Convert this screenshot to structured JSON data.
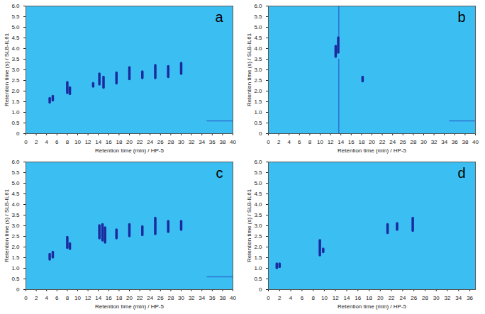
{
  "chart_data": [
    {
      "type": "scatter",
      "title": "a",
      "x_label": "Retention time (min) / HP-5",
      "y_label": "Retention time (s) / SLB-IL61",
      "xlim": [
        0,
        40
      ],
      "xticks": [
        0,
        2,
        4,
        6,
        8,
        10,
        12,
        14,
        16,
        18,
        20,
        22,
        24,
        26,
        28,
        30,
        32,
        34,
        36,
        38,
        40
      ],
      "ylim": [
        0,
        6
      ],
      "yticks": [
        0,
        0.5,
        {
          "value": 1,
          "label": "1.0"
        },
        1.5,
        {
          "value": 2,
          "label": "2.0"
        },
        2.5,
        {
          "value": 3,
          "label": "3.0"
        },
        3.5,
        {
          "value": 4,
          "label": "4.0"
        },
        4.5,
        {
          "value": 5,
          "label": "5.0"
        },
        5.5,
        {
          "value": 6,
          "label": "6.0"
        }
      ],
      "color": "#1b2a9e",
      "spots": {
        "x": [
          4.6,
          5.2,
          8.0,
          8.5,
          13.0,
          14.2,
          15.0,
          17.5,
          20.0,
          22.5,
          25.0,
          27.5,
          30.0
        ],
        "y_low": [
          1.45,
          1.55,
          1.9,
          1.85,
          2.2,
          2.3,
          2.15,
          2.35,
          2.55,
          2.6,
          2.6,
          2.65,
          2.8
        ],
        "y_high": [
          1.65,
          1.75,
          2.4,
          2.15,
          2.35,
          2.8,
          2.65,
          2.85,
          3.1,
          2.9,
          3.2,
          3.15,
          3.3
        ]
      },
      "streaks": [
        {
          "x": [
            35,
            40
          ],
          "y": [
            0.6,
            0.6
          ]
        }
      ]
    },
    {
      "type": "scatter",
      "title": "b",
      "x_label": "Retention time (min) / HP-5",
      "y_label": "Retention time (s) / SLB-IL61",
      "xlim": [
        0,
        40
      ],
      "xticks": [
        0,
        2,
        4,
        6,
        8,
        10,
        12,
        14,
        16,
        18,
        20,
        22,
        24,
        26,
        28,
        30,
        32,
        34,
        36,
        38,
        40
      ],
      "ylim": [
        0,
        6
      ],
      "yticks": [
        0,
        0.5,
        {
          "value": 1,
          "label": "1.0"
        },
        1.5,
        {
          "value": 2,
          "label": "2.0"
        },
        2.5,
        {
          "value": 3,
          "label": "3.0"
        },
        3.5,
        {
          "value": 4,
          "label": "4.0"
        },
        4.5,
        {
          "value": 5,
          "label": "5.0"
        },
        5.5,
        {
          "value": 6,
          "label": "6.0"
        }
      ],
      "color": "#1b2a9e",
      "spots": {
        "x": [
          13.0,
          13.5,
          18.2
        ],
        "y_low": [
          3.6,
          3.8,
          2.45
        ],
        "y_high": [
          4.1,
          4.5,
          2.65
        ]
      },
      "streaks": [
        {
          "x": [
            35,
            40
          ],
          "y": [
            0.6,
            0.6
          ]
        },
        {
          "x": [
            13.6,
            13.6
          ],
          "y": [
            0,
            3.5
          ]
        },
        {
          "x": [
            13.6,
            13.6
          ],
          "y": [
            4.5,
            6
          ]
        }
      ]
    },
    {
      "type": "scatter",
      "title": "c",
      "x_label": "Retention time (min) / HP-5",
      "y_label": "Retention time (s) / SLB-IL61",
      "xlim": [
        0,
        40
      ],
      "xticks": [
        0,
        2,
        4,
        6,
        8,
        10,
        12,
        14,
        16,
        18,
        20,
        22,
        24,
        26,
        28,
        30,
        32,
        34,
        36,
        38,
        40
      ],
      "ylim": [
        0,
        6
      ],
      "yticks": [
        0,
        0.5,
        {
          "value": 1,
          "label": "1.0"
        },
        1.5,
        {
          "value": 2,
          "label": "2.0"
        },
        2.5,
        {
          "value": 3,
          "label": "3.0"
        },
        3.5,
        {
          "value": 4,
          "label": "4.0"
        },
        4.5,
        {
          "value": 5,
          "label": "5.0"
        },
        5.5,
        {
          "value": 6,
          "label": "6.0"
        }
      ],
      "color": "#1b2a9e",
      "spots": {
        "x": [
          4.6,
          5.2,
          8.0,
          8.5,
          14.2,
          14.8,
          15.3,
          17.5,
          20.0,
          22.5,
          25.0,
          27.5,
          30.0
        ],
        "y_low": [
          1.4,
          1.5,
          1.95,
          1.9,
          2.4,
          2.3,
          2.2,
          2.4,
          2.5,
          2.55,
          2.6,
          2.7,
          2.8
        ],
        "y_high": [
          1.65,
          1.75,
          2.45,
          2.15,
          3.0,
          3.05,
          2.9,
          2.8,
          3.05,
          2.95,
          3.35,
          3.2,
          3.2
        ]
      },
      "streaks": [
        {
          "x": [
            35,
            40
          ],
          "y": [
            0.6,
            0.6
          ]
        }
      ]
    },
    {
      "type": "scatter",
      "title": "d",
      "x_label": "Retention time (min) / HP-5",
      "y_label": "Retention time (s) / SLB-IL61",
      "xlim": [
        0,
        37
      ],
      "xticks": [
        0,
        2,
        4,
        6,
        8,
        10,
        12,
        14,
        16,
        18,
        20,
        22,
        24,
        26,
        28,
        30,
        32,
        34,
        36
      ],
      "ylim": [
        0,
        6
      ],
      "yticks": [
        0,
        0.5,
        {
          "value": 1,
          "label": "1.0"
        },
        1.5,
        {
          "value": 2,
          "label": "2.0"
        },
        2.5,
        {
          "value": 3,
          "label": "3.0"
        },
        3.5,
        {
          "value": 4,
          "label": "4.0"
        },
        4.5,
        {
          "value": 5,
          "label": "5.0"
        },
        5.5,
        {
          "value": 6,
          "label": "6.0"
        }
      ],
      "color": "#1b2a9e",
      "spots": {
        "x": [
          1.5,
          2.0,
          9.2,
          9.8,
          21.3,
          23.0,
          25.8
        ],
        "y_low": [
          1.0,
          1.05,
          1.6,
          1.75,
          2.65,
          2.8,
          2.75
        ],
        "y_high": [
          1.2,
          1.2,
          2.3,
          1.9,
          3.05,
          3.1,
          3.35
        ]
      },
      "streaks": []
    }
  ]
}
